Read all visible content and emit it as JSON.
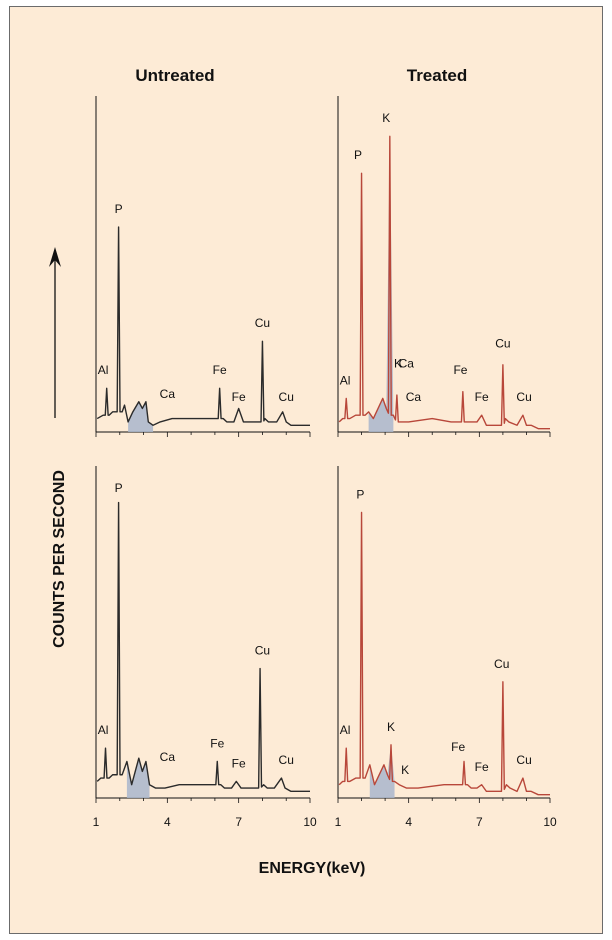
{
  "figure": {
    "column_titles": [
      "Untreated",
      "Treated"
    ],
    "ylabel": "COUNTS PER SECOND",
    "xlabel": "ENERGY(keV)",
    "x_ticks": [
      "1",
      "4",
      "7",
      "10"
    ]
  },
  "colors": {
    "background": "#fdebd6",
    "untreated": "#2b2b2b",
    "treated": "#b8473a",
    "fill": "#a9b6cc"
  },
  "chart_data": [
    {
      "type": "line",
      "panel": "Untreated (upper)",
      "xlim": [
        1,
        10
      ],
      "ylim": [
        0,
        1
      ],
      "series": [
        {
          "values_x": [
            1.05,
            1.3,
            1.45,
            1.55,
            1.7,
            1.95,
            2.1,
            2.2,
            2.35,
            2.55,
            2.8,
            2.95,
            3.1,
            3.2,
            3.4,
            3.7,
            4.2,
            5,
            5.8,
            6.2,
            6.35,
            6.5,
            6.8,
            7.0,
            7.2,
            7.6,
            8.0,
            8.1,
            8.25,
            8.6,
            8.85,
            9.0,
            9.2,
            9.5,
            10
          ],
          "values_y": [
            0.04,
            0.05,
            0.13,
            0.05,
            0.06,
            0.61,
            0.06,
            0.08,
            0.03,
            0.06,
            0.09,
            0.07,
            0.09,
            0.03,
            0.02,
            0.03,
            0.04,
            0.04,
            0.04,
            0.13,
            0.04,
            0.03,
            0.03,
            0.07,
            0.03,
            0.03,
            0.27,
            0.04,
            0.03,
            0.03,
            0.06,
            0.03,
            0.02,
            0.02,
            0.02
          ]
        }
      ],
      "labels": [
        {
          "text": "Al",
          "x": 1.3,
          "y": 0.16
        },
        {
          "text": "P",
          "x": 1.95,
          "y": 0.64
        },
        {
          "text": "Ca",
          "x": 4.0,
          "y": 0.09
        },
        {
          "text": "Fe",
          "x": 6.2,
          "y": 0.16
        },
        {
          "text": "Fe",
          "x": 7.0,
          "y": 0.08
        },
        {
          "text": "Cu",
          "x": 8.0,
          "y": 0.3
        },
        {
          "text": "Cu",
          "x": 9.0,
          "y": 0.08
        }
      ]
    },
    {
      "type": "line",
      "panel": "Treated (upper)",
      "xlim": [
        1,
        10
      ],
      "ylim": [
        0,
        1
      ],
      "series": [
        {
          "values_x": [
            1.05,
            1.2,
            1.35,
            1.5,
            1.75,
            2.0,
            2.15,
            2.3,
            2.5,
            2.9,
            3.05,
            3.2,
            3.35,
            3.5,
            3.7,
            4.0,
            5,
            5.8,
            6.3,
            6.45,
            6.6,
            6.9,
            7.1,
            7.3,
            7.6,
            8.0,
            8.1,
            8.25,
            8.6,
            8.85,
            9.0,
            9.2,
            9.5,
            10
          ],
          "values_y": [
            0.03,
            0.04,
            0.1,
            0.04,
            0.05,
            0.77,
            0.05,
            0.06,
            0.04,
            0.1,
            0.07,
            0.88,
            0.05,
            0.11,
            0.03,
            0.03,
            0.04,
            0.03,
            0.12,
            0.03,
            0.03,
            0.03,
            0.05,
            0.02,
            0.02,
            0.2,
            0.04,
            0.03,
            0.02,
            0.05,
            0.02,
            0.02,
            0.01,
            0.01
          ]
        }
      ],
      "labels": [
        {
          "text": "Al",
          "x": 1.3,
          "y": 0.13
        },
        {
          "text": "P",
          "x": 1.85,
          "y": 0.8
        },
        {
          "text": "K",
          "x": 3.05,
          "y": 0.91
        },
        {
          "text": "K",
          "x": 3.55,
          "y": 0.18
        },
        {
          "text": "Ca",
          "x": 3.9,
          "y": 0.18
        },
        {
          "text": "Ca",
          "x": 4.2,
          "y": 0.08
        },
        {
          "text": "Fe",
          "x": 6.2,
          "y": 0.16
        },
        {
          "text": "Fe",
          "x": 7.1,
          "y": 0.08
        },
        {
          "text": "Cu",
          "x": 8.0,
          "y": 0.24
        },
        {
          "text": "Cu",
          "x": 8.9,
          "y": 0.08
        }
      ]
    },
    {
      "type": "line",
      "panel": "Untreated (lower)",
      "xlim": [
        1,
        10
      ],
      "ylim": [
        0,
        1
      ],
      "series": [
        {
          "values_x": [
            1.05,
            1.2,
            1.4,
            1.55,
            1.7,
            1.95,
            2.1,
            2.3,
            2.5,
            2.8,
            2.95,
            3.1,
            3.25,
            3.5,
            3.9,
            4.5,
            5.5,
            6.1,
            6.25,
            6.4,
            6.7,
            6.9,
            7.1,
            7.5,
            7.9,
            8.05,
            8.2,
            8.5,
            8.8,
            8.95,
            9.2,
            9.5,
            10
          ],
          "values_y": [
            0.05,
            0.06,
            0.15,
            0.06,
            0.07,
            0.89,
            0.07,
            0.11,
            0.04,
            0.12,
            0.08,
            0.11,
            0.04,
            0.03,
            0.03,
            0.04,
            0.04,
            0.11,
            0.04,
            0.03,
            0.03,
            0.05,
            0.03,
            0.03,
            0.39,
            0.04,
            0.03,
            0.03,
            0.06,
            0.03,
            0.02,
            0.02,
            0.02
          ]
        }
      ],
      "labels": [
        {
          "text": "Al",
          "x": 1.3,
          "y": 0.18
        },
        {
          "text": "P",
          "x": 1.95,
          "y": 0.91
        },
        {
          "text": "Ca",
          "x": 4.0,
          "y": 0.1
        },
        {
          "text": "Fe",
          "x": 6.1,
          "y": 0.14
        },
        {
          "text": "Fe",
          "x": 7.0,
          "y": 0.08
        },
        {
          "text": "Cu",
          "x": 8.0,
          "y": 0.42
        },
        {
          "text": "Cu",
          "x": 9.0,
          "y": 0.09
        }
      ]
    },
    {
      "type": "line",
      "panel": "Treated (lower)",
      "xlim": [
        1,
        10
      ],
      "ylim": [
        0,
        1
      ],
      "series": [
        {
          "values_x": [
            1.05,
            1.2,
            1.35,
            1.5,
            1.75,
            2.0,
            2.15,
            2.35,
            2.55,
            2.95,
            3.1,
            3.25,
            3.4,
            3.6,
            3.9,
            4.4,
            5.5,
            6.35,
            6.5,
            6.65,
            6.9,
            7.1,
            7.3,
            7.6,
            8.0,
            8.15,
            8.3,
            8.6,
            8.85,
            9.0,
            9.2,
            9.5,
            10
          ],
          "values_y": [
            0.04,
            0.05,
            0.15,
            0.05,
            0.06,
            0.86,
            0.06,
            0.1,
            0.04,
            0.1,
            0.07,
            0.16,
            0.05,
            0.04,
            0.03,
            0.03,
            0.04,
            0.11,
            0.04,
            0.03,
            0.03,
            0.04,
            0.02,
            0.02,
            0.35,
            0.04,
            0.03,
            0.02,
            0.06,
            0.02,
            0.02,
            0.01,
            0.01
          ]
        }
      ],
      "labels": [
        {
          "text": "Al",
          "x": 1.3,
          "y": 0.18
        },
        {
          "text": "P",
          "x": 1.95,
          "y": 0.89
        },
        {
          "text": "K",
          "x": 3.25,
          "y": 0.19
        },
        {
          "text": "K",
          "x": 3.85,
          "y": 0.06
        },
        {
          "text": "Fe",
          "x": 6.1,
          "y": 0.13
        },
        {
          "text": "Fe",
          "x": 7.1,
          "y": 0.07
        },
        {
          "text": "Cu",
          "x": 7.95,
          "y": 0.38
        },
        {
          "text": "Cu",
          "x": 8.9,
          "y": 0.09
        }
      ]
    }
  ]
}
